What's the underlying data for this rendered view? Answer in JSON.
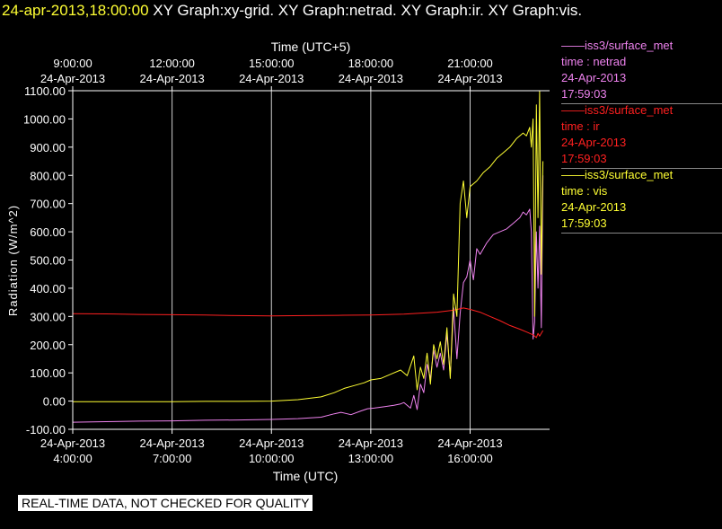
{
  "header": {
    "timestamp": "24-apr-2013,18:00:00",
    "graphs": "XY Graph:xy-grid.  XY Graph:netrad.  XY Graph:ir.  XY Graph:vis."
  },
  "legend": [
    {
      "line": "——iss3/surface_met",
      "field": "time : netrad",
      "date": "24-Apr-2013",
      "time": "17:59:03",
      "color": "#ee82ee"
    },
    {
      "line": "——iss3/surface_met",
      "field": "time : ir",
      "date": "24-Apr-2013",
      "time": "17:59:03",
      "color": "#ff2020"
    },
    {
      "line": "——iss3/surface_met",
      "field": "time : vis",
      "date": "24-Apr-2013",
      "time": "17:59:03",
      "color": "#ffff33"
    }
  ],
  "disclaimer": "REAL-TIME DATA, NOT CHECKED FOR QUALITY",
  "chart_data": {
    "type": "line",
    "title": "",
    "xlabel": "Time (UTC)",
    "xlabel_top": "Time (UTC+5)",
    "ylabel": "Radiation (W/m^2)",
    "xlim": [
      4.0,
      18.4
    ],
    "ylim": [
      -100,
      1100
    ],
    "grid": true,
    "y_ticks": [
      "-100.00",
      "0.00",
      "100.00",
      "200.00",
      "300.00",
      "400.00",
      "500.00",
      "600.00",
      "700.00",
      "800.00",
      "900.00",
      "1000.00",
      "1100.00"
    ],
    "x_ticks": [
      {
        "x": 4,
        "date": "24-Apr-2013",
        "time": "4:00:00"
      },
      {
        "x": 7,
        "date": "24-Apr-2013",
        "time": "7:00:00"
      },
      {
        "x": 10,
        "date": "24-Apr-2013",
        "time": "10:00:00"
      },
      {
        "x": 13,
        "date": "24-Apr-2013",
        "time": "13:00:00"
      },
      {
        "x": 16,
        "date": "24-Apr-2013",
        "time": "16:00:00"
      }
    ],
    "x_ticks_top": [
      {
        "x": 4,
        "date": "24-Apr-2013",
        "time": "9:00:00"
      },
      {
        "x": 7,
        "date": "24-Apr-2013",
        "time": "12:00:00"
      },
      {
        "x": 10,
        "date": "24-Apr-2013",
        "time": "15:00:00"
      },
      {
        "x": 13,
        "date": "24-Apr-2013",
        "time": "18:00:00"
      },
      {
        "x": 16,
        "date": "24-Apr-2013",
        "time": "21:00:00"
      }
    ],
    "series": [
      {
        "name": "netrad",
        "color": "#ee82ee",
        "x": [
          4.0,
          5.0,
          6.0,
          7.0,
          8.0,
          9.0,
          10.0,
          10.8,
          11.5,
          11.9,
          12.1,
          12.4,
          12.7,
          12.9,
          13.1,
          13.4,
          13.7,
          13.9,
          14.0,
          14.2,
          14.3,
          14.4,
          14.5,
          14.6,
          14.7,
          14.8,
          14.9,
          15.0,
          15.1,
          15.2,
          15.3,
          15.4,
          15.5,
          15.6,
          15.7,
          15.8,
          15.9,
          16.0,
          16.1,
          16.2,
          16.3,
          16.5,
          16.7,
          16.9,
          17.1,
          17.3,
          17.5,
          17.6,
          17.7,
          17.8,
          17.85,
          17.9,
          17.95,
          18.0,
          18.05,
          18.1,
          18.15,
          18.2
        ],
        "y": [
          -75,
          -73,
          -71,
          -70,
          -68,
          -67,
          -65,
          -62,
          -57,
          -45,
          -40,
          -48,
          -35,
          -27,
          -25,
          -20,
          -15,
          -10,
          -5,
          -25,
          20,
          -30,
          60,
          30,
          130,
          80,
          180,
          120,
          170,
          110,
          240,
          90,
          330,
          150,
          310,
          420,
          440,
          500,
          430,
          540,
          520,
          560,
          590,
          600,
          610,
          630,
          650,
          670,
          660,
          680,
          600,
          220,
          280,
          600,
          400,
          620,
          260,
          800
        ]
      },
      {
        "name": "ir",
        "color": "#ff2020",
        "x": [
          4.0,
          5.0,
          6.0,
          7.0,
          8.0,
          9.0,
          10.0,
          11.0,
          12.0,
          13.0,
          14.0,
          15.0,
          15.5,
          15.8,
          16.0,
          16.3,
          16.6,
          16.9,
          17.2,
          17.5,
          17.7,
          17.9,
          18.0,
          18.05,
          18.1,
          18.2
        ],
        "y": [
          310,
          309,
          307,
          306,
          305,
          303,
          302,
          303,
          304,
          305,
          308,
          315,
          322,
          330,
          325,
          315,
          300,
          285,
          268,
          255,
          245,
          235,
          225,
          240,
          230,
          250
        ]
      },
      {
        "name": "vis",
        "color": "#ffff33",
        "x": [
          4.0,
          5.0,
          6.0,
          7.0,
          8.0,
          9.0,
          10.0,
          10.8,
          11.5,
          11.9,
          12.2,
          12.5,
          12.8,
          13.0,
          13.3,
          13.6,
          13.9,
          14.1,
          14.3,
          14.4,
          14.5,
          14.6,
          14.7,
          14.8,
          14.9,
          15.0,
          15.1,
          15.2,
          15.3,
          15.4,
          15.5,
          15.6,
          15.7,
          15.8,
          15.9,
          16.0,
          16.2,
          16.4,
          16.6,
          16.8,
          17.0,
          17.2,
          17.4,
          17.6,
          17.7,
          17.8,
          17.85,
          17.9,
          17.95,
          18.0,
          18.05,
          18.1,
          18.15,
          18.2
        ],
        "y": [
          -2,
          -2,
          -2,
          -2,
          -1,
          -1,
          0,
          5,
          15,
          30,
          45,
          55,
          65,
          75,
          80,
          95,
          110,
          90,
          160,
          40,
          120,
          80,
          170,
          60,
          200,
          150,
          210,
          130,
          260,
          80,
          380,
          300,
          700,
          780,
          650,
          760,
          780,
          810,
          830,
          860,
          880,
          900,
          930,
          950,
          940,
          970,
          900,
          1000,
          300,
          1050,
          650,
          1100,
          450,
          850
        ]
      }
    ]
  }
}
